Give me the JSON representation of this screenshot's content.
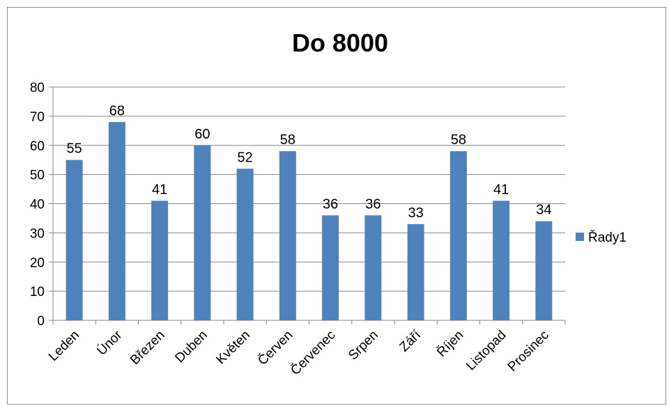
{
  "chart_data": {
    "type": "bar",
    "title": "Do 8000",
    "xlabel": "",
    "ylabel": "",
    "categories": [
      "Leden",
      "Únor",
      "Březen",
      "Duben",
      "Květen",
      "Červen",
      "Červenec",
      "Srpen",
      "Září",
      "Říjen",
      "Listopad",
      "Prosinec"
    ],
    "series": [
      {
        "name": "Řady1",
        "values": [
          55,
          68,
          41,
          60,
          52,
          58,
          36,
          36,
          33,
          58,
          41,
          34
        ],
        "color": "#4f81bd"
      }
    ],
    "ylim": [
      0,
      80
    ],
    "yticks": [
      "0",
      "10",
      "20",
      "30",
      "40",
      "50",
      "60",
      "70",
      "80"
    ],
    "grid": true,
    "legend_position": "right",
    "data_labels": true
  }
}
